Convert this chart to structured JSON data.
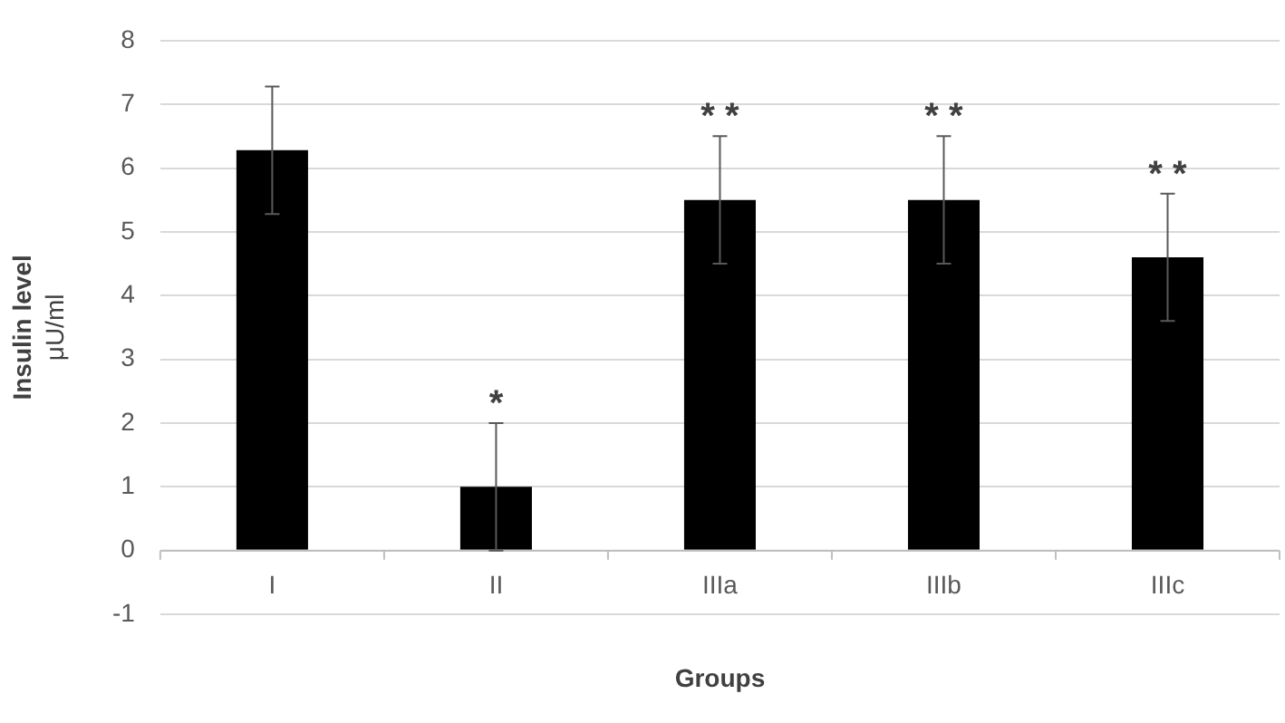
{
  "chart_data": {
    "type": "bar",
    "xlabel": "Groups",
    "ylabel": "Insulin level\nμU/ml",
    "categories": [
      "I",
      "II",
      "IIIa",
      "IIIb",
      "IIIc"
    ],
    "values": [
      6.28,
      1.0,
      5.5,
      5.5,
      4.6
    ],
    "errors": [
      1.0,
      1.0,
      1.0,
      1.0,
      1.0
    ],
    "color": "#000000",
    "ylim": [
      -1,
      8
    ],
    "yticks": [
      -1,
      0,
      1,
      2,
      3,
      4,
      5,
      6,
      7,
      8
    ],
    "grid": "y",
    "legend": false,
    "annotations": [
      "*",
      "* *",
      "* *",
      "* *"
    ]
  }
}
